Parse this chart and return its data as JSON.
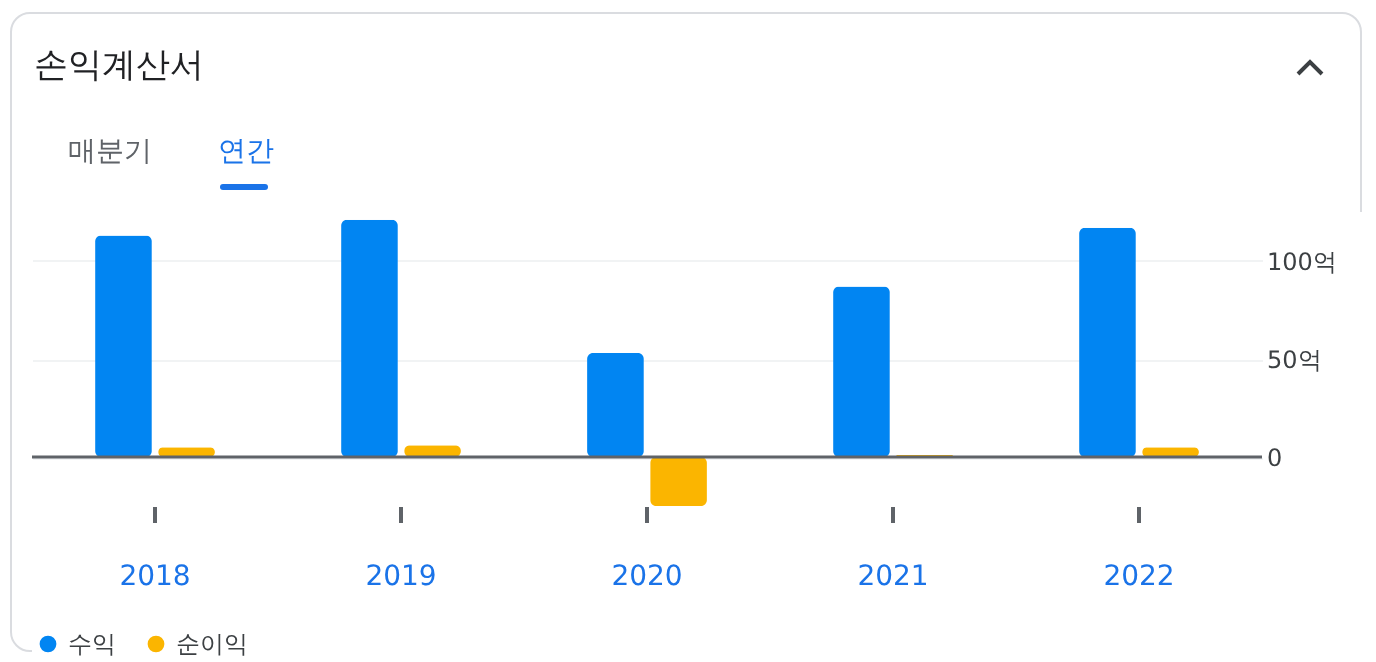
{
  "chart_data": {
    "type": "bar",
    "title": "손익계산서",
    "annotations": [
      "매분기",
      "연간"
    ],
    "categories": [
      "2018",
      "2019",
      "2020",
      "2021",
      "2022"
    ],
    "series": [
      {
        "name": "수익",
        "color": "#0185f2",
        "values": [
          113,
          121,
          53,
          87,
          117
        ]
      },
      {
        "name": "순이익",
        "color": "#fbb500",
        "values": [
          5,
          6,
          -25,
          1,
          5
        ]
      }
    ],
    "ylim": [
      -25,
      125
    ],
    "yticks": [
      {
        "value": 0,
        "label": "0"
      },
      {
        "value": 50,
        "label": "50억"
      },
      {
        "value": 100,
        "label": "100억"
      }
    ],
    "ref_lines": [
      {
        "axis": "y",
        "value": 0,
        "color": "#5f6368"
      }
    ],
    "grid": "y",
    "legend": "bottom left"
  }
}
